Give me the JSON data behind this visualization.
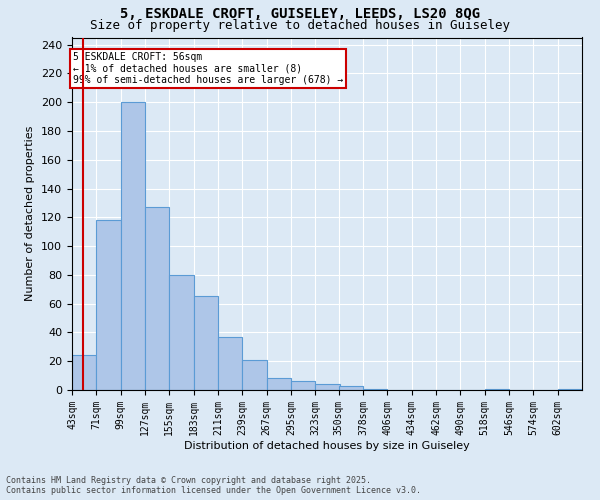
{
  "title1": "5, ESKDALE CROFT, GUISELEY, LEEDS, LS20 8QG",
  "title2": "Size of property relative to detached houses in Guiseley",
  "xlabel": "Distribution of detached houses by size in Guiseley",
  "ylabel": "Number of detached properties",
  "bins": [
    43,
    71,
    99,
    127,
    155,
    183,
    211,
    239,
    267,
    295,
    323,
    350,
    378,
    406,
    434,
    462,
    490,
    518,
    546,
    574,
    602
  ],
  "bar_heights": [
    24,
    118,
    200,
    127,
    80,
    65,
    37,
    21,
    8,
    6,
    4,
    3,
    1,
    0,
    0,
    0,
    0,
    1,
    0,
    0,
    1
  ],
  "bar_color": "#aec6e8",
  "bar_edge_color": "#5b9bd5",
  "vline_x": 56,
  "vline_color": "#cc0000",
  "annotation_text": "5 ESKDALE CROFT: 56sqm\n← 1% of detached houses are smaller (8)\n99% of semi-detached houses are larger (678) →",
  "annotation_box_color": "#ffffff",
  "annotation_box_edge": "#cc0000",
  "background_color": "#dce9f5",
  "plot_bg_color": "#dce9f5",
  "grid_color": "#ffffff",
  "footer1": "Contains HM Land Registry data © Crown copyright and database right 2025.",
  "footer2": "Contains public sector information licensed under the Open Government Licence v3.0.",
  "ylim": [
    0,
    245
  ],
  "yticks": [
    0,
    20,
    40,
    60,
    80,
    100,
    120,
    140,
    160,
    180,
    200,
    220,
    240
  ],
  "title1_fontsize": 10,
  "title2_fontsize": 9,
  "ylabel_fontsize": 8,
  "xlabel_fontsize": 8,
  "tick_fontsize": 7,
  "footer_fontsize": 6
}
